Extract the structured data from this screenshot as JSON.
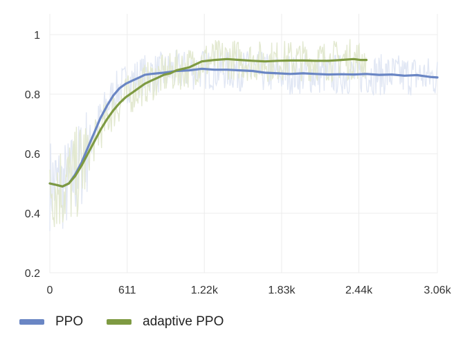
{
  "chart_data": {
    "type": "line",
    "xlim": [
      0,
      3060
    ],
    "ylim": [
      0.2,
      1.0
    ],
    "x_ticks": [
      "0",
      "611",
      "1.22k",
      "1.83k",
      "2.44k",
      "3.06k"
    ],
    "x_tick_values": [
      0,
      611,
      1220,
      1830,
      2440,
      3060
    ],
    "y_ticks": [
      "0.2",
      "0.4",
      "0.6",
      "0.8",
      "1"
    ],
    "y_tick_values": [
      0.2,
      0.4,
      0.6,
      0.8,
      1.0
    ],
    "grid": true,
    "legend_position": "bottom-left",
    "series": [
      {
        "name": "PPO",
        "color": "#6a86c4",
        "raw_color": "#dfe6f3",
        "smoothed": [
          [
            0,
            0.5
          ],
          [
            50,
            0.495
          ],
          [
            100,
            0.49
          ],
          [
            150,
            0.5
          ],
          [
            200,
            0.53
          ],
          [
            250,
            0.57
          ],
          [
            300,
            0.62
          ],
          [
            350,
            0.67
          ],
          [
            400,
            0.72
          ],
          [
            450,
            0.76
          ],
          [
            500,
            0.795
          ],
          [
            550,
            0.82
          ],
          [
            600,
            0.835
          ],
          [
            650,
            0.845
          ],
          [
            700,
            0.855
          ],
          [
            750,
            0.865
          ],
          [
            800,
            0.868
          ],
          [
            850,
            0.87
          ],
          [
            900,
            0.872
          ],
          [
            950,
            0.875
          ],
          [
            1000,
            0.878
          ],
          [
            1100,
            0.88
          ],
          [
            1200,
            0.885
          ],
          [
            1300,
            0.882
          ],
          [
            1400,
            0.882
          ],
          [
            1500,
            0.88
          ],
          [
            1600,
            0.878
          ],
          [
            1700,
            0.872
          ],
          [
            1800,
            0.87
          ],
          [
            1900,
            0.868
          ],
          [
            2000,
            0.87
          ],
          [
            2100,
            0.868
          ],
          [
            2200,
            0.866
          ],
          [
            2300,
            0.867
          ],
          [
            2400,
            0.866
          ],
          [
            2500,
            0.868
          ],
          [
            2600,
            0.865
          ],
          [
            2700,
            0.866
          ],
          [
            2800,
            0.862
          ],
          [
            2900,
            0.864
          ],
          [
            3000,
            0.858
          ],
          [
            3060,
            0.856
          ]
        ],
        "raw_band": {
          "low": 0.75,
          "high": 0.98,
          "early_low": 0.28,
          "early_high": 0.7
        }
      },
      {
        "name": "adaptive PPO",
        "color": "#7e9a42",
        "raw_color": "#e1e8cf",
        "smoothed": [
          [
            0,
            0.5
          ],
          [
            50,
            0.495
          ],
          [
            100,
            0.49
          ],
          [
            150,
            0.5
          ],
          [
            200,
            0.525
          ],
          [
            250,
            0.56
          ],
          [
            300,
            0.6
          ],
          [
            350,
            0.64
          ],
          [
            400,
            0.68
          ],
          [
            450,
            0.715
          ],
          [
            500,
            0.745
          ],
          [
            550,
            0.77
          ],
          [
            600,
            0.79
          ],
          [
            650,
            0.805
          ],
          [
            700,
            0.82
          ],
          [
            750,
            0.835
          ],
          [
            800,
            0.845
          ],
          [
            850,
            0.855
          ],
          [
            900,
            0.865
          ],
          [
            950,
            0.87
          ],
          [
            1000,
            0.88
          ],
          [
            1100,
            0.89
          ],
          [
            1200,
            0.91
          ],
          [
            1300,
            0.915
          ],
          [
            1400,
            0.918
          ],
          [
            1500,
            0.915
          ],
          [
            1600,
            0.912
          ],
          [
            1700,
            0.91
          ],
          [
            1800,
            0.912
          ],
          [
            1900,
            0.913
          ],
          [
            2000,
            0.913
          ],
          [
            2100,
            0.912
          ],
          [
            2200,
            0.912
          ],
          [
            2300,
            0.915
          ],
          [
            2400,
            0.918
          ],
          [
            2450,
            0.915
          ],
          [
            2500,
            0.915
          ]
        ],
        "raw_band": {
          "low": 0.76,
          "high": 0.98,
          "early_low": 0.35,
          "early_high": 0.68
        }
      }
    ]
  }
}
